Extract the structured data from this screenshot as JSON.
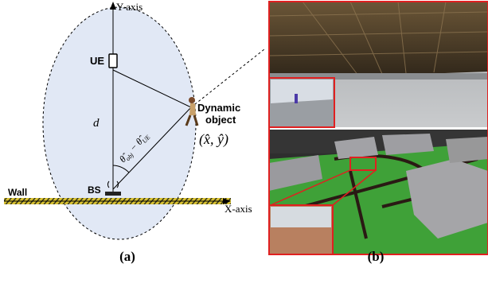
{
  "panel_a": {
    "y_axis": "Y-axis",
    "x_axis": "X-axis",
    "ue": "UE",
    "distance": "d",
    "object_label": [
      "Dynamic",
      "object"
    ],
    "object_coords": "(x̂, ŷ)",
    "angle": {
      "theta_1": "θ̂",
      "sub_1": "obj",
      "minus": " − ",
      "theta_2": "θ̂",
      "sub_2": "UE"
    },
    "bs": "BS",
    "wall": "Wall",
    "caption": "(a)"
  },
  "panel_b": {
    "caption": "(b)"
  }
}
